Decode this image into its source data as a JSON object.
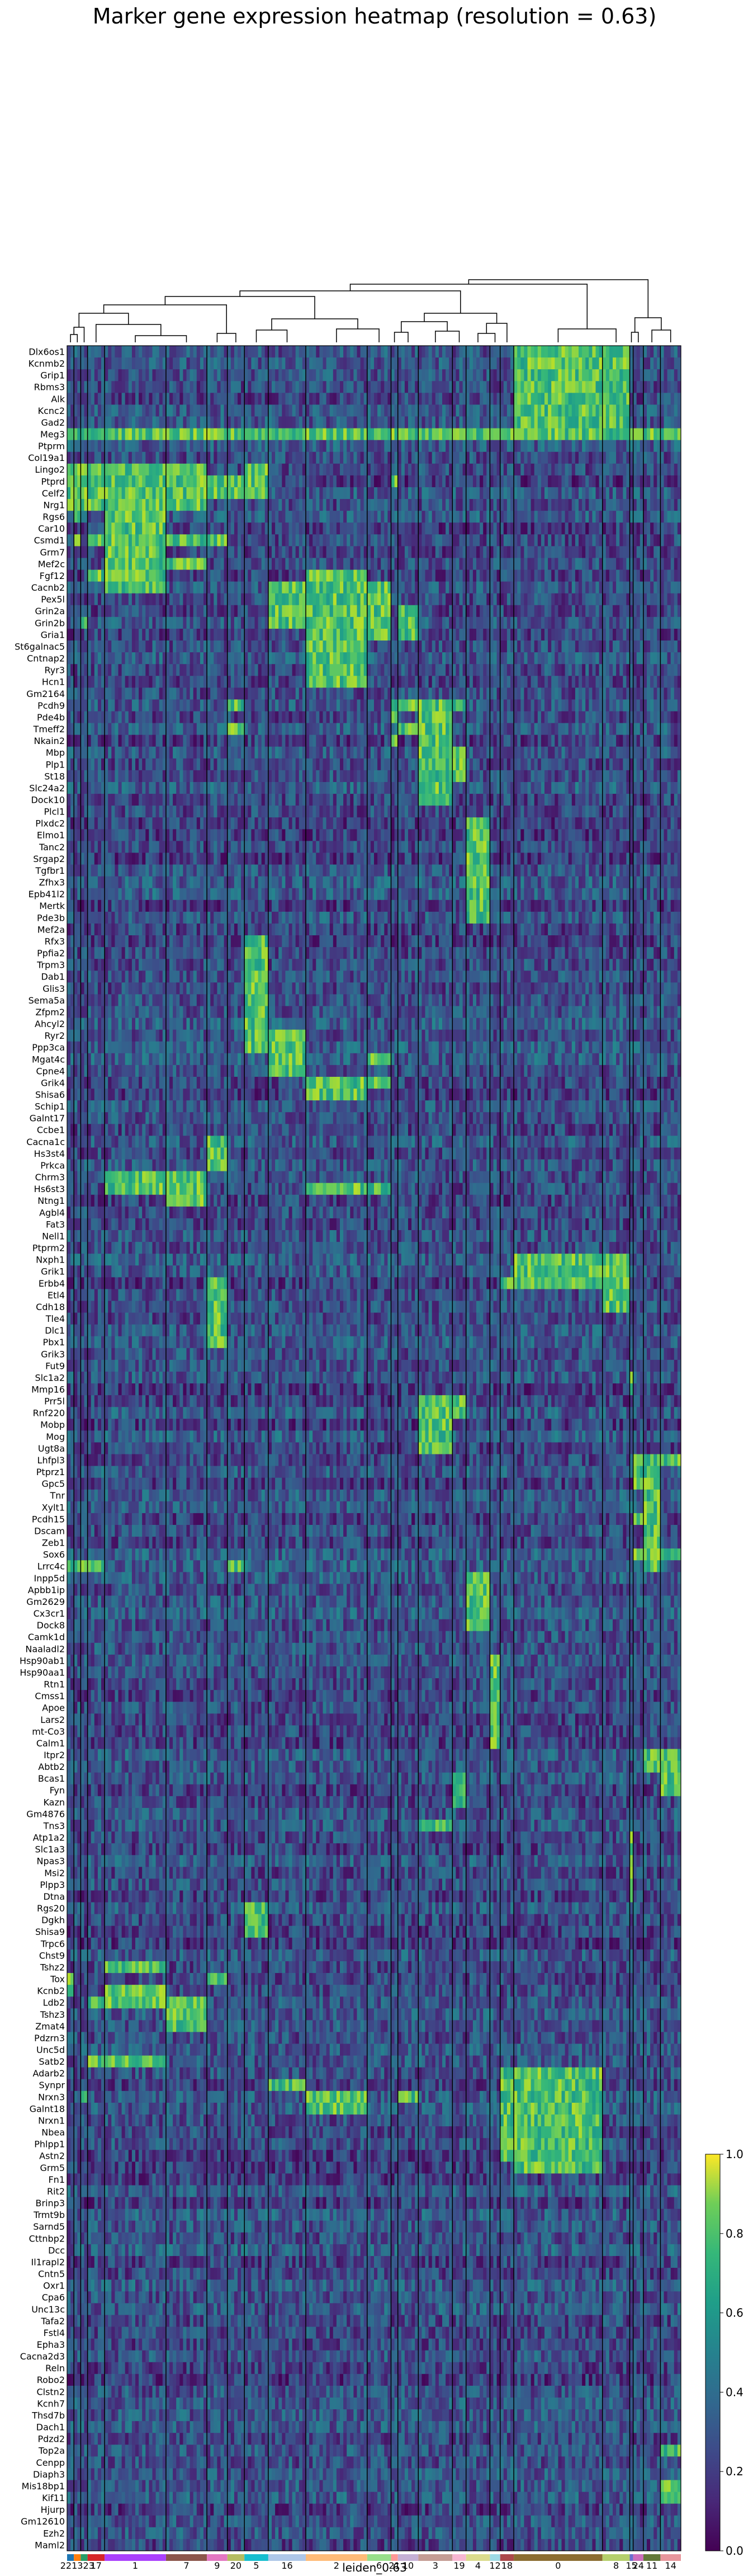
{
  "chart_data": {
    "type": "heatmap",
    "title": "Marker gene expression heatmap (resolution = 0.63)",
    "xlabel": "leiden_0.63",
    "ylabel": "",
    "colormap": "viridis",
    "colorbar": {
      "min": 0,
      "max": 1,
      "ticks": [
        0,
        0.2,
        0.4,
        0.6,
        0.8,
        1.0
      ],
      "tick_labels": [
        "0.0",
        "0.2",
        "0.4",
        "0.6",
        "0.8",
        "1.0"
      ]
    },
    "dendrogram": true,
    "cluster_order": [
      "22",
      "13",
      "23",
      "17",
      "1",
      "7",
      "9",
      "20",
      "5",
      "16",
      "2",
      "6",
      "21",
      "10",
      "3",
      "19",
      "4",
      "12",
      "18",
      "0",
      "8",
      "15",
      "24",
      "11",
      "14"
    ],
    "cluster_label_text": [
      "221323",
      "17",
      "1",
      "7",
      "9",
      "20",
      "5",
      "16",
      "2",
      "6",
      "21",
      "10",
      "3",
      "19",
      "4",
      "12",
      "18",
      "0",
      "8",
      "15",
      "24",
      "11",
      "14"
    ],
    "cluster_colors": [
      "#1f77b4",
      "#ff7f0e",
      "#279e68",
      "#d62728",
      "#aa40fc",
      "#8c564b",
      "#e377c2",
      "#b5bd61",
      "#17becf",
      "#aec7e8",
      "#ffbb78",
      "#98df8a",
      "#ff9896",
      "#c5b0d5",
      "#c49c94",
      "#f7b6d2",
      "#dbdb8d",
      "#9edae5",
      "#ad494a",
      "#8c6d31",
      "#b5cf6b",
      "#6b6ecf",
      "#ce6dbd",
      "#637939",
      "#e7969c"
    ],
    "cluster_sizes": [
      2,
      2,
      2,
      5,
      18,
      12,
      6,
      5,
      7,
      11,
      18,
      7,
      2,
      6,
      10,
      4,
      7,
      3,
      4,
      26,
      8,
      1,
      3,
      5,
      6
    ],
    "genes": [
      "Dlx6os1",
      "Kcnmb2",
      "Grip1",
      "Rbms3",
      "Alk",
      "Kcnc2",
      "Gad2",
      "Meg3",
      "Ptprm",
      "Col19a1",
      "Lingo2",
      "Ptprd",
      "Celf2",
      "Nrg1",
      "Rgs6",
      "Car10",
      "Csmd1",
      "Grm7",
      "Mef2c",
      "Fgf12",
      "Cacnb2",
      "Pex5l",
      "Grin2a",
      "Grin2b",
      "Gria1",
      "St6galnac5",
      "Cntnap2",
      "Ryr3",
      "Hcn1",
      "Gm2164",
      "Pcdh9",
      "Pde4b",
      "Tmeff2",
      "Nkain2",
      "Mbp",
      "Plp1",
      "St18",
      "Slc24a2",
      "Dock10",
      "Plcl1",
      "Plxdc2",
      "Elmo1",
      "Tanc2",
      "Srgap2",
      "Tgfbr1",
      "Zfhx3",
      "Epb41l2",
      "Mertk",
      "Pde3b",
      "Mef2a",
      "Rfx3",
      "Ppfia2",
      "Trpm3",
      "Dab1",
      "Glis3",
      "Sema5a",
      "Zfpm2",
      "Ahcyl2",
      "Ryr2",
      "Ppp3ca",
      "Mgat4c",
      "Cpne4",
      "Grik4",
      "Shisa6",
      "Schip1",
      "Galnt17",
      "Ccbe1",
      "Cacna1c",
      "Hs3st4",
      "Prkca",
      "Chrm3",
      "Hs6st3",
      "Ntng1",
      "Agbl4",
      "Fat3",
      "Nell1",
      "Ptprm2",
      "Nxph1",
      "Grik1",
      "Erbb4",
      "Etl4",
      "Cdh18",
      "Tle4",
      "Dlc1",
      "Pbx1",
      "Grik3",
      "Fut9",
      "Slc1a2",
      "Mmp16",
      "Prr5l",
      "Rnf220",
      "Mobp",
      "Mog",
      "Ugt8a",
      "Lhfpl3",
      "Ptprz1",
      "Gpc5",
      "Tnr",
      "Xylt1",
      "Pcdh15",
      "Dscam",
      "Zeb1",
      "Sox6",
      "Lrrc4c",
      "Inpp5d",
      "Apbb1ip",
      "Gm2629",
      "Cx3cr1",
      "Dock8",
      "Camk1d",
      "Naaladl2",
      "Hsp90ab1",
      "Hsp90aa1",
      "Rtn1",
      "Cmss1",
      "Apoe",
      "Lars2",
      "mt-Co3",
      "Calm1",
      "Itpr2",
      "Abtb2",
      "Bcas1",
      "Fyn",
      "Kazn",
      "Gm4876",
      "Tns3",
      "Atp1a2",
      "Slc1a3",
      "Npas3",
      "Msi2",
      "Plpp3",
      "Dtna",
      "Rgs20",
      "Dgkh",
      "Shisa9",
      "Trpc6",
      "Chst9",
      "Tshz2",
      "Tox",
      "Kcnb2",
      "Ldb2",
      "Tshz3",
      "Zmat4",
      "Pdzrn3",
      "Unc5d",
      "Satb2",
      "Adarb2",
      "Synpr",
      "Nrxn3",
      "Galnt18",
      "Nrxn1",
      "Nbea",
      "Phlpp1",
      "Astn2",
      "Grm5",
      "Fn1",
      "Rit2",
      "Brinp3",
      "Trmt9b",
      "Sarnd5",
      "Cttnbp2",
      "Dcc",
      "Il1rapl2",
      "Cntn5",
      "Oxr1",
      "Cpa6",
      "Unc13c",
      "Tafa2",
      "Fstl4",
      "Epha3",
      "Cacna2d3",
      "Reln",
      "Robo2",
      "Clstn2",
      "Kcnh7",
      "Thsd7b",
      "Dach1",
      "Pdzd2",
      "Top2a",
      "Cenpp",
      "Diaph3",
      "Mis18bp1",
      "Kif11",
      "Hjurp",
      "Gm12610",
      "Ezh2",
      "Maml2"
    ],
    "hot_blocks": [
      {
        "cluster": "22",
        "genes": [
          "Lrrc4c",
          "Lingo2",
          "Ptprd",
          "Celf2",
          "Nrg1",
          "Tox",
          "Kcnb2"
        ]
      },
      {
        "cluster": "13",
        "genes": [
          "Lingo2",
          "Ptprd",
          "Celf2",
          "Nrg1",
          "Rgs6",
          "Csmd1",
          "Lrrc4c"
        ]
      },
      {
        "cluster": "23",
        "genes": [
          "Lingo2",
          "Ptprd",
          "Celf2",
          "Nrg1",
          "Grin2b",
          "Lrrc4c",
          "Nrxn3"
        ]
      },
      {
        "cluster": "17",
        "genes": [
          "Lingo2",
          "Ptprd",
          "Celf2",
          "Nrg1",
          "Csmd1",
          "Fgf12",
          "Lrrc4c",
          "Satb2",
          "Ldb2"
        ]
      },
      {
        "cluster": "1",
        "genes": [
          "Lingo2",
          "Ptprd",
          "Celf2",
          "Nrg1",
          "Rgs6",
          "Car10",
          "Csmd1",
          "Grm7",
          "Mef2c",
          "Fgf12",
          "Cacnb2",
          "Chrm3",
          "Hs6st3",
          "Satb2",
          "Tshz2",
          "Kcnb2",
          "Ldb2"
        ]
      },
      {
        "cluster": "7",
        "genes": [
          "Lingo2",
          "Ptprd",
          "Celf2",
          "Nrg1",
          "Csmd1",
          "Mef2c",
          "Chrm3",
          "Hs6st3",
          "Ntng1",
          "Ldb2",
          "Tshz3",
          "Zmat4"
        ]
      },
      {
        "cluster": "9",
        "genes": [
          "Ptprd",
          "Celf2",
          "Csmd1",
          "Cacna1c",
          "Hs3st4",
          "Prkca",
          "Erbb4",
          "Etl4",
          "Cdh18",
          "Tle4",
          "Dlc1",
          "Pbx1",
          "Tox"
        ]
      },
      {
        "cluster": "20",
        "genes": [
          "Ptprd",
          "Celf2",
          "Pcdh9",
          "Lrrc4c",
          "Tmeff2"
        ]
      },
      {
        "cluster": "5",
        "genes": [
          "Rfx3",
          "Ppfia2",
          "Trpm3",
          "Dab1",
          "Glis3",
          "Sema5a",
          "Zfpm2",
          "Ahcyl2",
          "Ryr2",
          "Ppp3ca",
          "Rgs20",
          "Dgkh",
          "Shisa9",
          "Lingo2",
          "Ptprd",
          "Celf2"
        ]
      },
      {
        "cluster": "16",
        "genes": [
          "Cacnb2",
          "Pex5l",
          "Grin2a",
          "Grin2b",
          "Ryr2",
          "Ppp3ca",
          "Mgat4c",
          "Cpne4",
          "Synpr"
        ]
      },
      {
        "cluster": "2",
        "genes": [
          "Fgf12",
          "Cacnb2",
          "Pex5l",
          "Grin2a",
          "Grin2b",
          "Gria1",
          "St6galnac5",
          "Cntnap2",
          "Ryr3",
          "Hcn1",
          "Hs6st3",
          "Grik4",
          "Shisa6",
          "Nrxn3",
          "Galnt18"
        ]
      },
      {
        "cluster": "6",
        "genes": [
          "Cacnb2",
          "Pex5l",
          "Grin2a",
          "Grin2b",
          "Gria1",
          "Hs6st3",
          "Grik4",
          "Mgat4c"
        ]
      },
      {
        "cluster": "21",
        "genes": [
          "Pcdh9",
          "Pde4b",
          "Ptprd",
          "Nkain2"
        ]
      },
      {
        "cluster": "10",
        "genes": [
          "Grin2a",
          "Grin2b",
          "Gria1",
          "Pcdh9",
          "Tmeff2",
          "Nrxn3"
        ]
      },
      {
        "cluster": "3",
        "genes": [
          "Pcdh9",
          "Pde4b",
          "Tmeff2",
          "Nkain2",
          "Mbp",
          "Plp1",
          "St18",
          "Slc24a2",
          "Dock10",
          "Prr5l",
          "Rnf220",
          "Mobp",
          "Mog",
          "Ugt8a",
          "Tns3"
        ]
      },
      {
        "cluster": "19",
        "genes": [
          "Pcdh9",
          "Mbp",
          "Plp1",
          "St18",
          "Prr5l",
          "Rnf220",
          "Bcas1",
          "Fyn",
          "Kazn"
        ]
      },
      {
        "cluster": "4",
        "genes": [
          "Plxdc2",
          "Elmo1",
          "Tanc2",
          "Srgap2",
          "Tgfbr1",
          "Zfhx3",
          "Epb41l2",
          "Mertk",
          "Pde3b",
          "Inpp5d",
          "Apbb1ip",
          "Gm2629",
          "Cx3cr1",
          "Dock8"
        ]
      },
      {
        "cluster": "12",
        "genes": [
          "Hsp90ab1",
          "Hsp90aa1",
          "Rtn1",
          "Cmss1",
          "Apoe",
          "Lars2",
          "mt-Co3",
          "Calm1"
        ]
      },
      {
        "cluster": "18",
        "genes": [
          "Adarb2",
          "Synpr",
          "Nrxn3",
          "Galnt18",
          "Nrxn1",
          "Nbea",
          "Phlpp1",
          "Astn2",
          "Erbb4"
        ]
      },
      {
        "cluster": "0",
        "genes": [
          "Dlx6os1",
          "Kcnmb2",
          "Grip1",
          "Rbms3",
          "Alk",
          "Kcnc2",
          "Gad2",
          "Meg3",
          "Erbb4",
          "Nxph1",
          "Grik1",
          "Adarb2",
          "Synpr",
          "Nrxn3",
          "Galnt18",
          "Nrxn1",
          "Nbea",
          "Phlpp1",
          "Astn2",
          "Grm5"
        ]
      },
      {
        "cluster": "8",
        "genes": [
          "Dlx6os1",
          "Kcnmb2",
          "Grip1",
          "Rbms3",
          "Alk",
          "Kcnc2",
          "Gad2",
          "Meg3",
          "Nxph1",
          "Grik1",
          "Erbb4",
          "Etl4",
          "Cdh18"
        ]
      },
      {
        "cluster": "15",
        "genes": [
          "Atp1a2",
          "Slc1a3",
          "Npas3",
          "Msi2",
          "Plpp3",
          "Dtna",
          "Slc1a2",
          "Mmp16"
        ]
      },
      {
        "cluster": "24",
        "genes": [
          "Lhfpl3",
          "Ptprz1",
          "Gpc5",
          "Sox6",
          "Pcdh15"
        ]
      },
      {
        "cluster": "11",
        "genes": [
          "Lhfpl3",
          "Ptprz1",
          "Gpc5",
          "Tnr",
          "Xylt1",
          "Pcdh15",
          "Dscam",
          "Zeb1",
          "Sox6",
          "Lrrc4c",
          "Itpr2",
          "Abtb2"
        ]
      },
      {
        "cluster": "14",
        "genes": [
          "Itpr2",
          "Abtb2",
          "Bcas1",
          "Fyn",
          "Lhfpl3",
          "Sox6",
          "Top2a",
          "Mis18bp1",
          "Kif11"
        ]
      }
    ]
  }
}
